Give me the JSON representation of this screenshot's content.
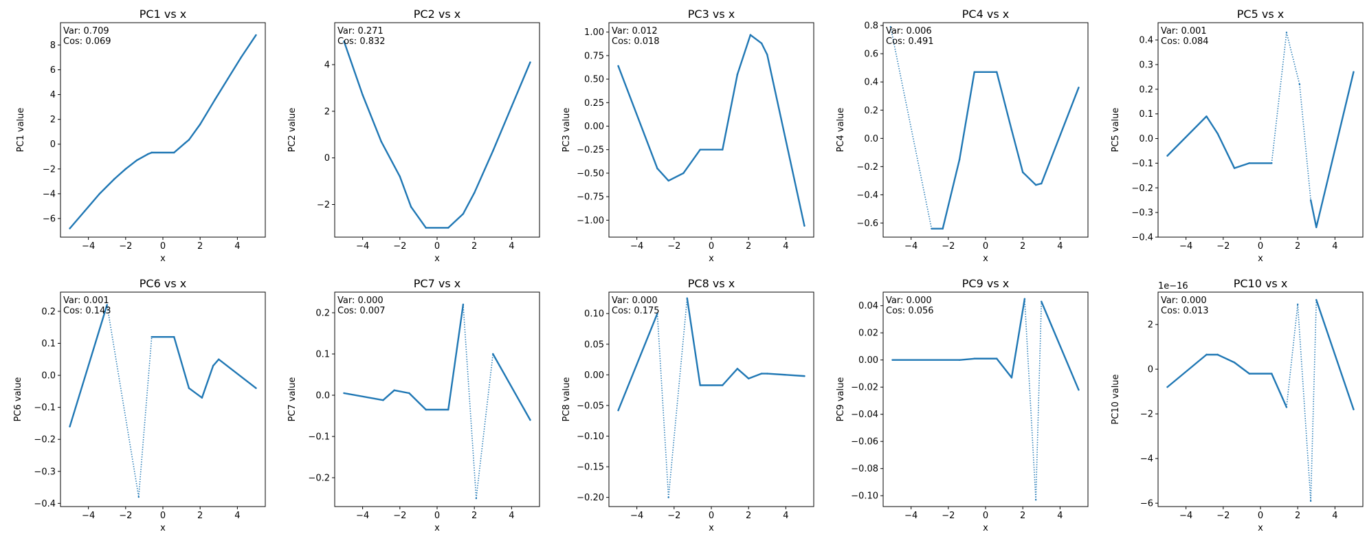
{
  "line_color": "#1f77b4",
  "chart_data": [
    {
      "type": "line",
      "title": "PC1 vs x",
      "xlabel": "x",
      "ylabel": "PC1 value",
      "annotation": [
        "Var: 0.709",
        "Cos: 0.069"
      ],
      "xlim": [
        -5.5,
        5.5
      ],
      "ylim": [
        -7.5,
        9.8
      ],
      "xticks": [
        -4,
        -2,
        0,
        2,
        4
      ],
      "yticks": [
        -6,
        -4,
        -2,
        0,
        2,
        4,
        6,
        8
      ],
      "xticklabels": [
        "−4",
        "−2",
        "0",
        "2",
        "4"
      ],
      "yticklabels": [
        "−6",
        "−4",
        "−2",
        "0",
        "2",
        "4",
        "6",
        "8"
      ],
      "offset_text": "",
      "x": [
        -5,
        -4.2,
        -3.4,
        -2.6,
        -2,
        -1.4,
        -0.8,
        -0.6,
        0.6,
        1.2,
        1.4,
        2,
        2.8,
        3.5,
        4.2,
        5
      ],
      "y": [
        -6.8,
        -5.4,
        -4,
        -2.8,
        -2,
        -1.3,
        -0.8,
        -0.68,
        -0.68,
        0.1,
        0.35,
        1.6,
        3.6,
        5.3,
        7,
        8.8
      ],
      "dotted_after": []
    },
    {
      "type": "line",
      "title": "PC2 vs x",
      "xlabel": "x",
      "ylabel": "PC2 value",
      "annotation": [
        "Var: 0.271",
        "Cos: 0.832"
      ],
      "xlim": [
        -5.5,
        5.5
      ],
      "ylim": [
        -3.4,
        5.8
      ],
      "xticks": [
        -4,
        -2,
        0,
        2,
        4
      ],
      "yticks": [
        -2,
        0,
        2,
        4
      ],
      "xticklabels": [
        "−4",
        "−2",
        "0",
        "2",
        "4"
      ],
      "yticklabels": [
        "−2",
        "0",
        "2",
        "4"
      ],
      "offset_text": "",
      "x": [
        -5,
        -4,
        -3,
        -2,
        -1.4,
        -0.6,
        0.6,
        1.4,
        2,
        3,
        4,
        5
      ],
      "y": [
        5,
        2.7,
        0.7,
        -0.8,
        -2.1,
        -3,
        -3,
        -2.4,
        -1.5,
        0.3,
        2.2,
        4.1
      ],
      "dotted_after": []
    },
    {
      "type": "line",
      "title": "PC3 vs x",
      "xlabel": "x",
      "ylabel": "PC3 value",
      "annotation": [
        "Var: 0.012",
        "Cos: 0.018"
      ],
      "xlim": [
        -5.5,
        5.5
      ],
      "ylim": [
        -1.18,
        1.1
      ],
      "xticks": [
        -4,
        -2,
        0,
        2,
        4
      ],
      "yticks": [
        -1,
        -0.75,
        -0.5,
        -0.25,
        0,
        0.25,
        0.5,
        0.75,
        1
      ],
      "xticklabels": [
        "−4",
        "−2",
        "0",
        "2",
        "4"
      ],
      "yticklabels": [
        "−1.00",
        "−0.75",
        "−0.50",
        "−0.25",
        "0.00",
        "0.25",
        "0.50",
        "0.75",
        "1.00"
      ],
      "offset_text": "",
      "x": [
        -5,
        -2.9,
        -2.3,
        -1.5,
        -0.6,
        0.6,
        1.4,
        2.1,
        2.7,
        3,
        5
      ],
      "y": [
        0.64,
        -0.45,
        -0.58,
        -0.5,
        -0.25,
        -0.25,
        0.55,
        0.97,
        0.88,
        0.76,
        -1.06
      ],
      "dotted_after": []
    },
    {
      "type": "line",
      "title": "PC4 vs x",
      "xlabel": "x",
      "ylabel": "PC4 value",
      "annotation": [
        "Var: 0.006",
        "Cos: 0.491"
      ],
      "xlim": [
        -5.5,
        5.5
      ],
      "ylim": [
        -0.7,
        0.82
      ],
      "xticks": [
        -4,
        -2,
        0,
        2,
        4
      ],
      "yticks": [
        -0.6,
        -0.4,
        -0.2,
        0,
        0.2,
        0.4,
        0.6,
        0.8
      ],
      "xticklabels": [
        "−4",
        "−2",
        "0",
        "2",
        "4"
      ],
      "yticklabels": [
        "−0.6",
        "−0.4",
        "−0.2",
        "0.0",
        "0.2",
        "0.4",
        "0.6",
        "0.8"
      ],
      "offset_text": "",
      "x": [
        -5.1,
        -2.9,
        -2.3,
        -1.4,
        -0.6,
        0.6,
        1.4,
        2,
        2.7,
        3,
        5
      ],
      "y": [
        0.79,
        -0.64,
        -0.64,
        -0.15,
        0.47,
        0.47,
        0.06,
        -0.24,
        -0.33,
        -0.32,
        0.36
      ],
      "dotted_after": [
        0
      ]
    },
    {
      "type": "line",
      "title": "PC5 vs x",
      "xlabel": "x",
      "ylabel": "PC5 value",
      "annotation": [
        "Var: 0.001",
        "Cos: 0.084"
      ],
      "xlim": [
        -5.5,
        5.5
      ],
      "ylim": [
        -0.4,
        0.47
      ],
      "xticks": [
        -4,
        -2,
        0,
        2,
        4
      ],
      "yticks": [
        -0.4,
        -0.3,
        -0.2,
        -0.1,
        0,
        0.1,
        0.2,
        0.3,
        0.4
      ],
      "xticklabels": [
        "−4",
        "−2",
        "0",
        "2",
        "4"
      ],
      "yticklabels": [
        "−0.4",
        "−0.3",
        "−0.2",
        "−0.1",
        "0.0",
        "0.1",
        "0.2",
        "0.3",
        "0.4"
      ],
      "offset_text": "",
      "x": [
        -5,
        -2.9,
        -2.3,
        -1.4,
        -0.6,
        0.6,
        1.4,
        2.1,
        2.7,
        3,
        5
      ],
      "y": [
        -0.07,
        0.09,
        0.02,
        -0.12,
        -0.1,
        -0.1,
        0.43,
        0.22,
        -0.25,
        -0.36,
        0.27
      ],
      "dotted_after": [
        5,
        6,
        7
      ]
    },
    {
      "type": "line",
      "title": "PC6 vs x",
      "xlabel": "x",
      "ylabel": "PC6 value",
      "annotation": [
        "Var: 0.001",
        "Cos: 0.143"
      ],
      "xlim": [
        -5.5,
        5.5
      ],
      "ylim": [
        -0.41,
        0.26
      ],
      "xticks": [
        -4,
        -2,
        0,
        2,
        4
      ],
      "yticks": [
        -0.4,
        -0.3,
        -0.2,
        -0.1,
        0,
        0.1,
        0.2
      ],
      "xticklabels": [
        "−4",
        "−2",
        "0",
        "2",
        "4"
      ],
      "yticklabels": [
        "−0.4",
        "−0.3",
        "−0.2",
        "−0.1",
        "0.0",
        "0.1",
        "0.2"
      ],
      "offset_text": "",
      "x": [
        -5,
        -3,
        -1.3,
        -0.6,
        0.6,
        1.4,
        2.1,
        2.7,
        3,
        5
      ],
      "y": [
        -0.16,
        0.22,
        -0.38,
        0.12,
        0.12,
        -0.04,
        -0.07,
        0.03,
        0.05,
        -0.04
      ],
      "dotted_after": [
        1,
        2
      ]
    },
    {
      "type": "line",
      "title": "PC7 vs x",
      "xlabel": "x",
      "ylabel": "PC7 value",
      "annotation": [
        "Var: 0.000",
        "Cos: 0.007"
      ],
      "xlim": [
        -5.5,
        5.5
      ],
      "ylim": [
        -0.27,
        0.25
      ],
      "xticks": [
        -4,
        -2,
        0,
        2,
        4
      ],
      "yticks": [
        -0.2,
        -0.1,
        0,
        0.1,
        0.2
      ],
      "xticklabels": [
        "−4",
        "−2",
        "0",
        "2",
        "4"
      ],
      "yticklabels": [
        "−0.2",
        "−0.1",
        "0.0",
        "0.1",
        "0.2"
      ],
      "offset_text": "",
      "x": [
        -5,
        -2.9,
        -2.3,
        -1.5,
        -0.6,
        0.6,
        1.4,
        2.1,
        3,
        5
      ],
      "y": [
        0.005,
        -0.012,
        0.012,
        0.005,
        -0.035,
        -0.035,
        0.22,
        -0.25,
        0.1,
        -0.06
      ],
      "dotted_after": [
        6,
        7
      ]
    },
    {
      "type": "line",
      "title": "PC8 vs x",
      "xlabel": "x",
      "ylabel": "PC8 value",
      "annotation": [
        "Var: 0.000",
        "Cos: 0.175"
      ],
      "xlim": [
        -5.5,
        5.5
      ],
      "ylim": [
        -0.215,
        0.135
      ],
      "xticks": [
        -4,
        -2,
        0,
        2,
        4
      ],
      "yticks": [
        -0.2,
        -0.15,
        -0.1,
        -0.05,
        0,
        0.05,
        0.1
      ],
      "xticklabels": [
        "−4",
        "−2",
        "0",
        "2",
        "4"
      ],
      "yticklabels": [
        "−0.20",
        "−0.15",
        "−0.10",
        "−0.05",
        "0.00",
        "0.05",
        "0.10"
      ],
      "offset_text": "",
      "x": [
        -5,
        -2.9,
        -2.3,
        -1.3,
        -0.6,
        0.6,
        1.4,
        2,
        2.7,
        3,
        5
      ],
      "y": [
        -0.058,
        0.1,
        -0.2,
        0.125,
        -0.017,
        -0.017,
        0.01,
        -0.006,
        0.002,
        0.002,
        -0.002
      ],
      "dotted_after": [
        1,
        2
      ]
    },
    {
      "type": "line",
      "title": "PC9 vs x",
      "xlabel": "x",
      "ylabel": "PC9 value",
      "annotation": [
        "Var: 0.000",
        "Cos: 0.056"
      ],
      "xlim": [
        -5.5,
        5.5
      ],
      "ylim": [
        -0.108,
        0.05
      ],
      "xticks": [
        -4,
        -2,
        0,
        2,
        4
      ],
      "yticks": [
        -0.1,
        -0.08,
        -0.06,
        -0.04,
        -0.02,
        0,
        0.02,
        0.04
      ],
      "xticklabels": [
        "−4",
        "−2",
        "0",
        "2",
        "4"
      ],
      "yticklabels": [
        "−0.10",
        "−0.08",
        "−0.06",
        "−0.04",
        "−0.02",
        "0.00",
        "0.02",
        "0.04"
      ],
      "offset_text": "",
      "x": [
        -5,
        -1.4,
        -0.6,
        0.6,
        1.4,
        2.1,
        2.7,
        3,
        5
      ],
      "y": [
        0,
        0,
        0.001,
        0.001,
        -0.013,
        0.045,
        -0.103,
        0.043,
        -0.022
      ],
      "dotted_after": [
        5,
        6
      ]
    },
    {
      "type": "line",
      "title": "PC10 vs x",
      "xlabel": "x",
      "ylabel": "PC10 value",
      "annotation": [
        "Var: 0.000",
        "Cos: 0.013"
      ],
      "xlim": [
        -5.5,
        5.5
      ],
      "ylim": [
        -6.15,
        3.45
      ],
      "xticks": [
        -4,
        -2,
        0,
        2,
        4
      ],
      "yticks": [
        -6,
        -4,
        -2,
        0,
        2
      ],
      "xticklabels": [
        "−4",
        "−2",
        "0",
        "2",
        "4"
      ],
      "yticklabels": [
        "−6",
        "−4",
        "−2",
        "0",
        "2"
      ],
      "offset_text": "1e−16",
      "x": [
        -5,
        -2.9,
        -2.3,
        -1.4,
        -0.6,
        0.6,
        1.4,
        2,
        2.7,
        3,
        5
      ],
      "y": [
        -0.8,
        0.65,
        0.65,
        0.3,
        -0.2,
        -0.2,
        -1.7,
        2.9,
        -5.9,
        3.1,
        -1.8
      ],
      "dotted_after": [
        6,
        7,
        8
      ]
    }
  ]
}
